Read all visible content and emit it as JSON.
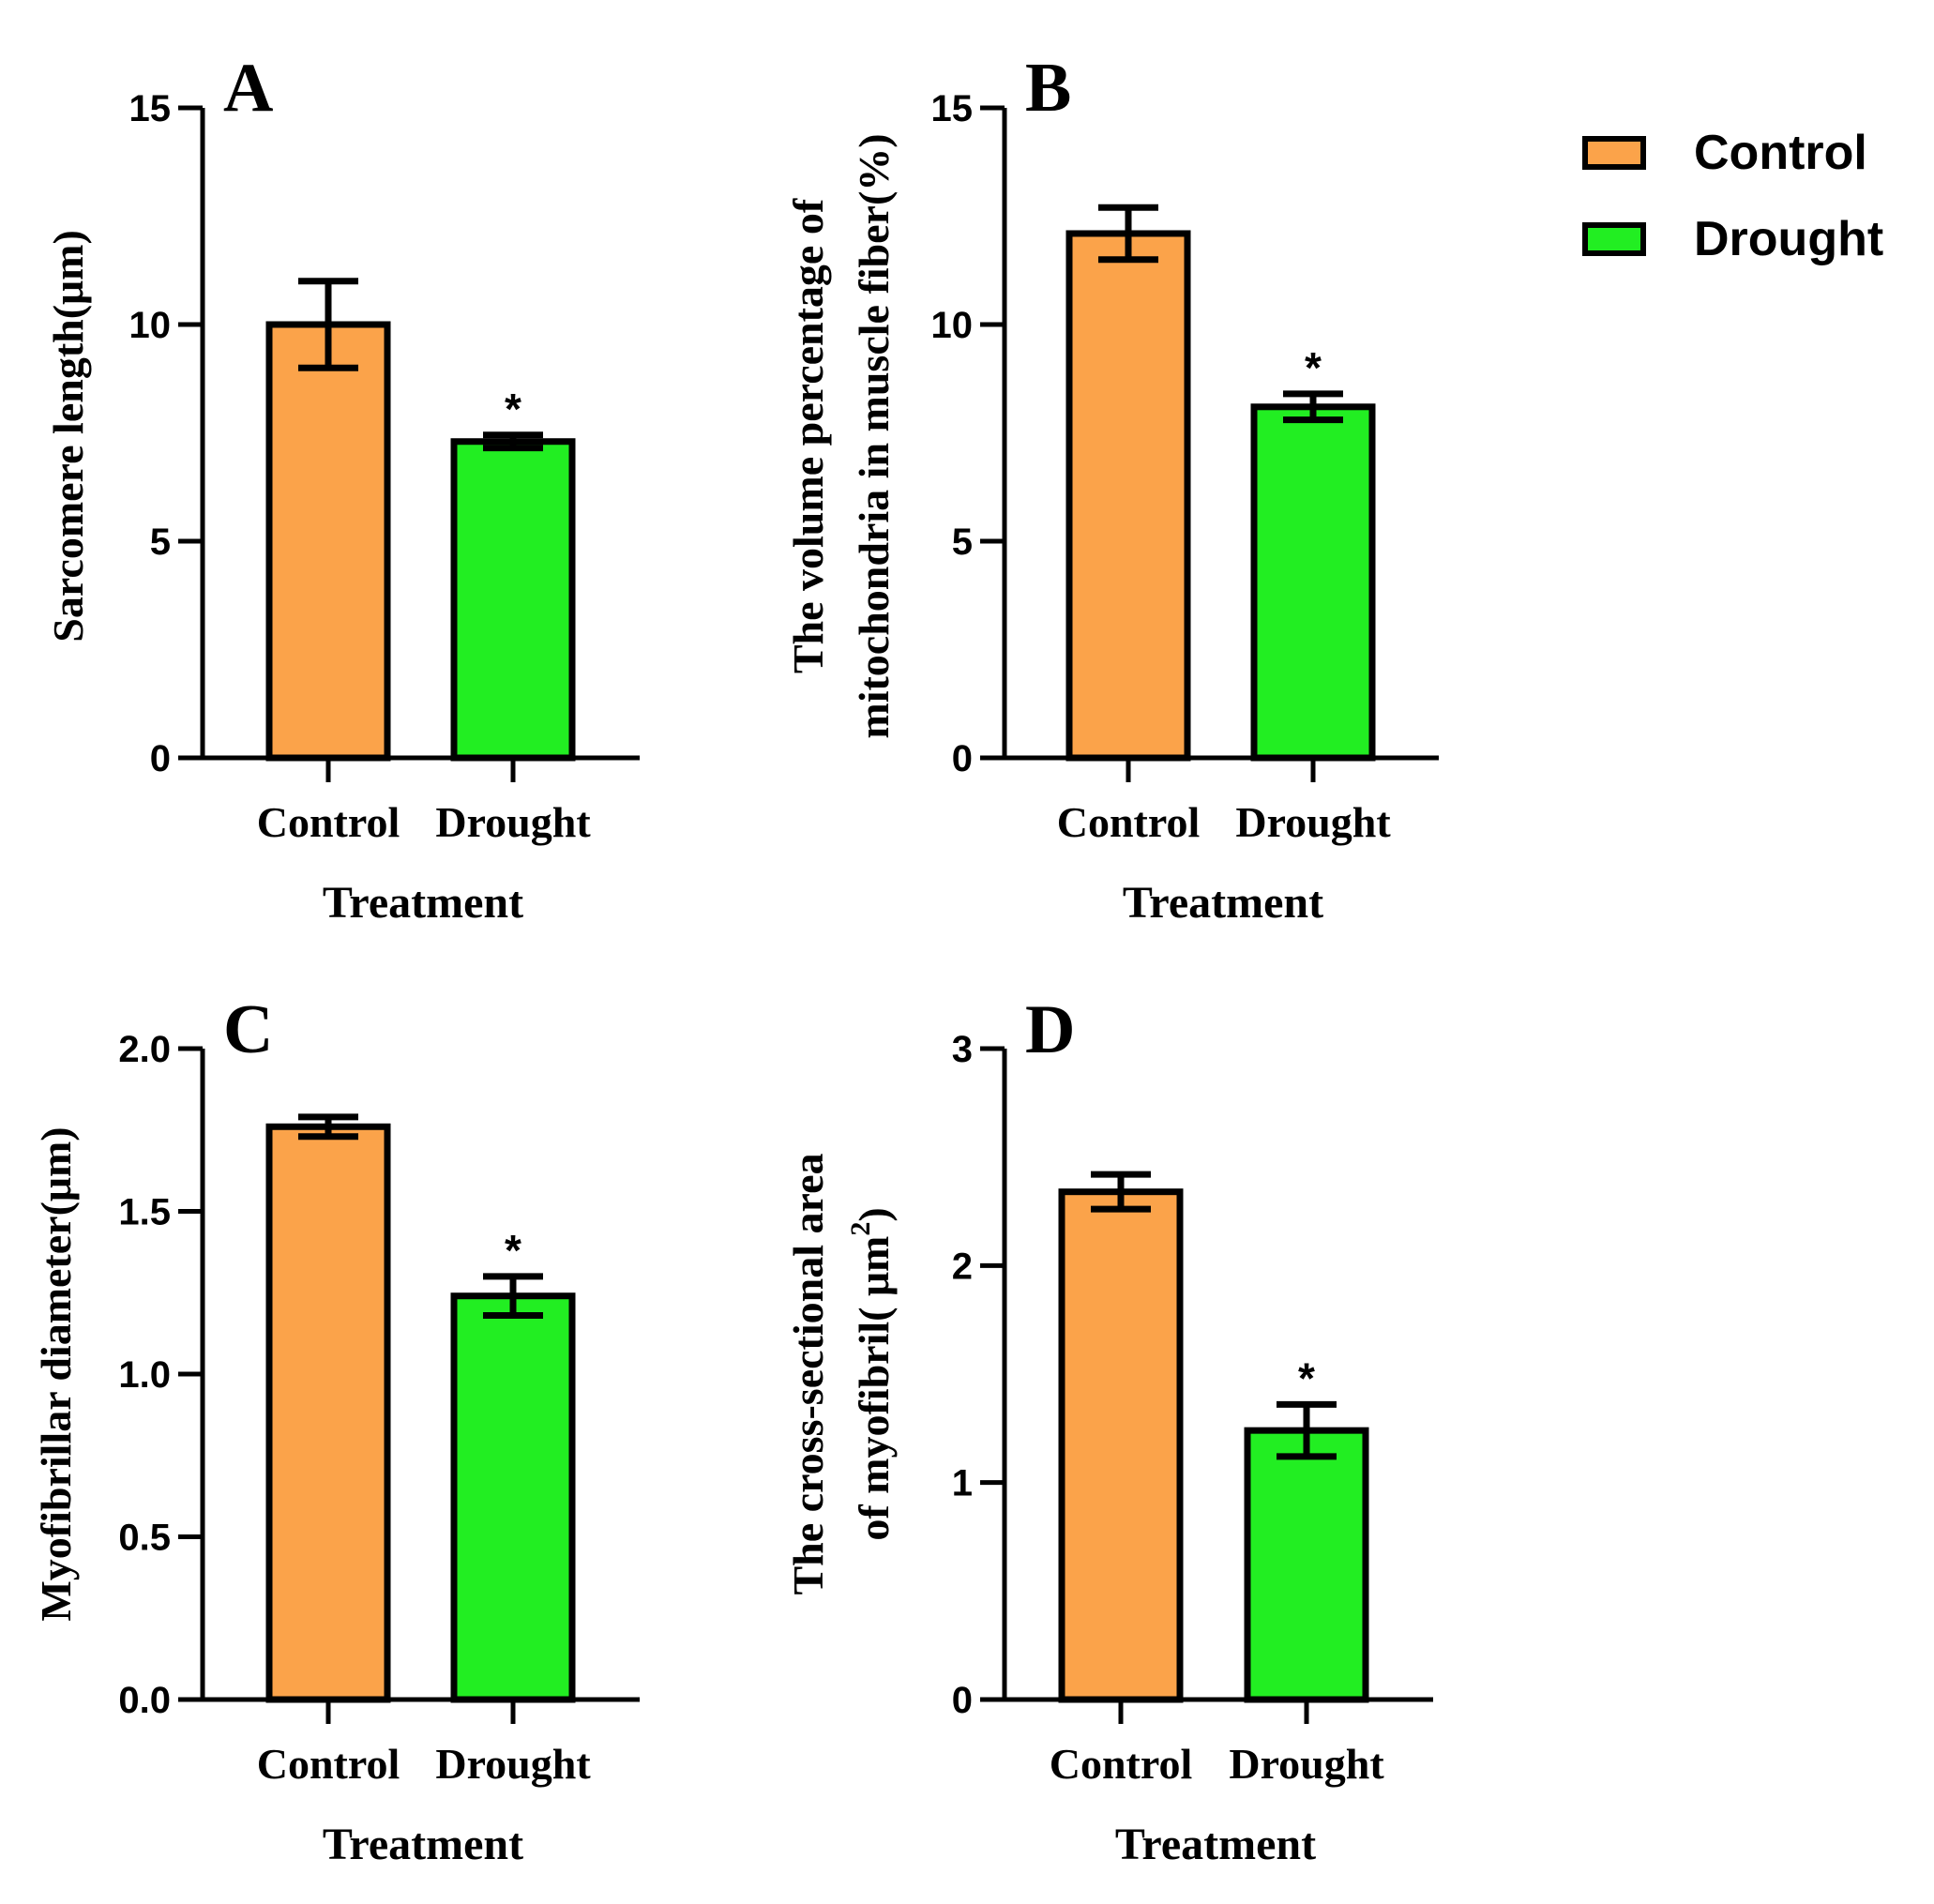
{
  "chart_data": [
    {
      "type": "bar",
      "panel": "A",
      "categories": [
        "Control",
        "Drought"
      ],
      "values": [
        10.0,
        7.3
      ],
      "errors": [
        1.0,
        0.15
      ],
      "significance": [
        "",
        "*"
      ],
      "xlabel": "Treatment",
      "ylabel": "Sarcomere length(μm)",
      "ylim": [
        0,
        15
      ],
      "yticks": [
        0,
        5,
        10,
        15
      ],
      "ytick_labels": [
        "0",
        "5",
        "10",
        "15"
      ]
    },
    {
      "type": "bar",
      "panel": "B",
      "categories": [
        "Control",
        "Drought"
      ],
      "values": [
        12.1,
        8.1
      ],
      "errors": [
        0.6,
        0.3
      ],
      "significance": [
        "",
        "*"
      ],
      "xlabel": "Treatment",
      "ylabel_lines": [
        "The volume percentage of",
        "mitochondria in muscle fiber(%)"
      ],
      "ylim": [
        0,
        15
      ],
      "yticks": [
        0,
        5,
        10,
        15
      ],
      "ytick_labels": [
        "0",
        "5",
        "10",
        "15"
      ]
    },
    {
      "type": "bar",
      "panel": "C",
      "categories": [
        "Control",
        "Drought"
      ],
      "values": [
        1.76,
        1.24
      ],
      "errors": [
        0.03,
        0.06
      ],
      "significance": [
        "",
        "*"
      ],
      "xlabel": "Treatment",
      "ylabel": "Myofibrillar diameter(μm)",
      "ylim": [
        0,
        2.0
      ],
      "yticks": [
        0,
        0.5,
        1.0,
        1.5,
        2.0
      ],
      "ytick_labels": [
        "0.0",
        "0.5",
        "1.0",
        "1.5",
        "2.0"
      ]
    },
    {
      "type": "bar",
      "panel": "D",
      "categories": [
        "Control",
        "Drought"
      ],
      "values": [
        2.34,
        1.24
      ],
      "errors": [
        0.08,
        0.12
      ],
      "significance": [
        "",
        "*"
      ],
      "xlabel": "Treatment",
      "ylabel_lines": [
        "The cross-sectional area",
        "of myofibril( μm",
        "2",
        ")"
      ],
      "ylim": [
        0,
        3
      ],
      "yticks": [
        0,
        1,
        2,
        3
      ],
      "ytick_labels": [
        "0",
        "1",
        "2",
        "3"
      ]
    }
  ],
  "legend": {
    "items": [
      {
        "label": "Control",
        "color": "#fba34a"
      },
      {
        "label": "Drought",
        "color": "#22ee22"
      }
    ]
  }
}
